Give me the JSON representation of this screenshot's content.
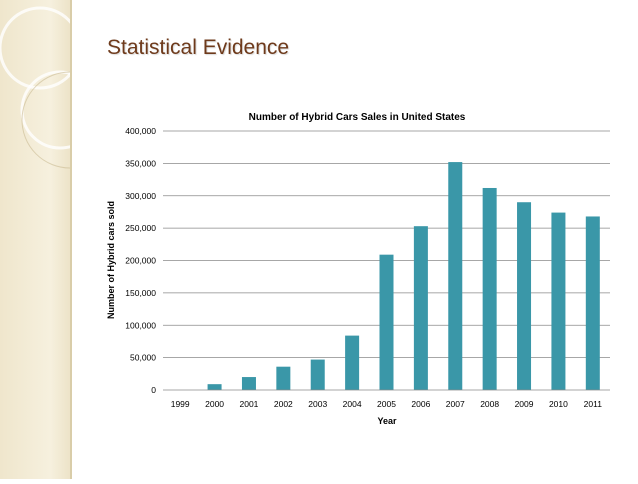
{
  "slide": {
    "title": "Statistical Evidence"
  },
  "colors": {
    "bar": "#3a97a8",
    "title": "#6e3a1b",
    "grid": "#8a8a8a",
    "panel": "#efe6cc"
  },
  "chart_data": {
    "type": "bar",
    "title": "Number of Hybrid Cars Sales in United States",
    "xlabel": "Year",
    "ylabel": "Number of Hybrid cars sold",
    "categories": [
      "1999",
      "2000",
      "2001",
      "2002",
      "2003",
      "2004",
      "2005",
      "2006",
      "2007",
      "2008",
      "2009",
      "2010",
      "2011"
    ],
    "values": [
      0,
      9000,
      20000,
      36000,
      47000,
      84000,
      209000,
      253000,
      352000,
      312000,
      290000,
      274000,
      268000
    ],
    "ylim": [
      0,
      400000
    ],
    "yticks": [
      "0",
      "50,000",
      "100,000",
      "150,000",
      "200,000",
      "250,000",
      "300,000",
      "350,000",
      "400,000"
    ],
    "grid": true,
    "legend": "none"
  }
}
